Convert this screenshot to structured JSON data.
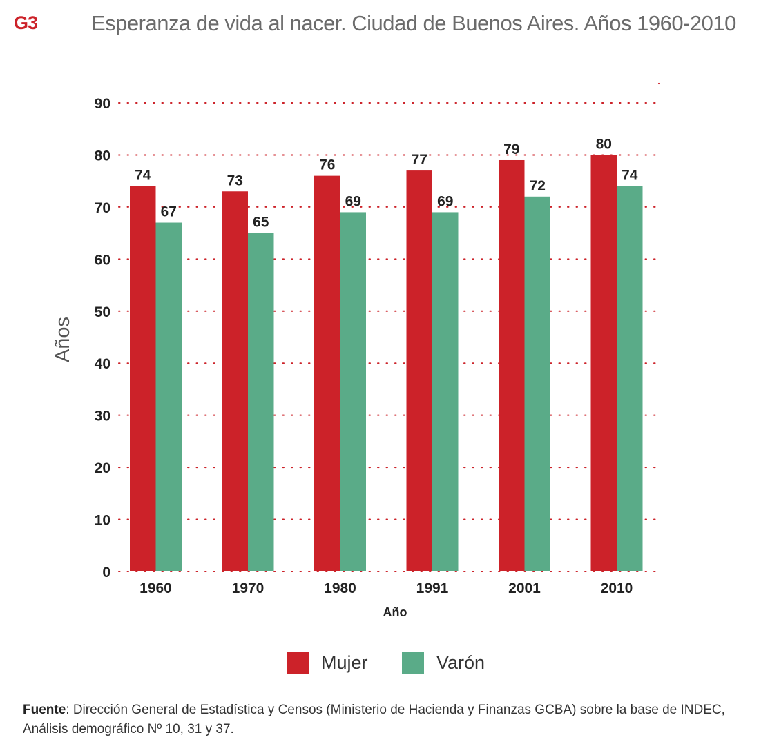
{
  "header": {
    "id": "G3",
    "title": "Esperanza de vida al nacer. Ciudad de Buenos Aires. Años 1960-2010"
  },
  "colors": {
    "mujer": "#cc2229",
    "varon": "#5aab88",
    "grid": "#cc2229",
    "id": "#cc2229"
  },
  "chart_data": {
    "type": "bar",
    "title": "Esperanza de vida al nacer. Ciudad de Buenos Aires. Años 1960-2010",
    "xlabel": "Año",
    "ylabel": "Años",
    "categories": [
      "1960",
      "1970",
      "1980",
      "1991",
      "2001",
      "2010"
    ],
    "series": [
      {
        "name": "Mujer",
        "values": [
          74,
          73,
          76,
          77,
          79,
          80
        ]
      },
      {
        "name": "Varón",
        "values": [
          67,
          65,
          69,
          69,
          72,
          74
        ]
      }
    ],
    "ylim": [
      0,
      90
    ],
    "yticks": [
      0,
      10,
      20,
      30,
      40,
      50,
      60,
      70,
      80,
      90
    ],
    "grid": true,
    "legend_position": "bottom",
    "data_labels": true
  },
  "legend": {
    "items": [
      {
        "label": "Mujer"
      },
      {
        "label": "Varón"
      }
    ]
  },
  "source": {
    "label": "Fuente",
    "text": ": Dirección General de Estadística y Censos (Ministerio de Hacienda y Finanzas GCBA) sobre la base de INDEC, Análisis demográfico Nº 10, 31 y 37."
  }
}
